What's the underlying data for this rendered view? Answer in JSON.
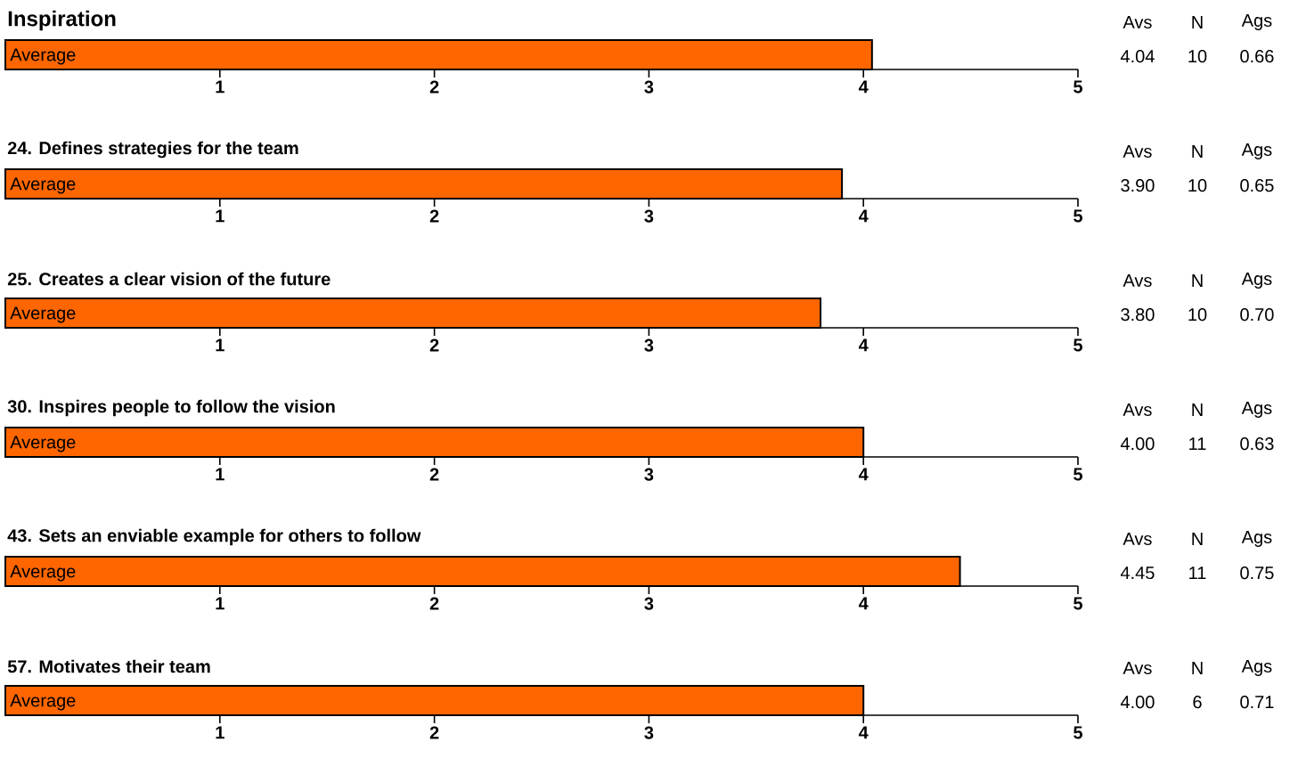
{
  "chart_data": [
    {
      "type": "bar",
      "orientation": "horizontal",
      "title": "Inspiration",
      "categories": [
        "Average"
      ],
      "values": [
        4.04
      ],
      "color": "#ff6600",
      "xlim": [
        0,
        5
      ],
      "xticks": [
        1,
        2,
        3,
        4,
        5
      ],
      "annotations": [
        "Avs",
        "N",
        "Ags",
        "4.04",
        "10",
        "0.66"
      ]
    },
    {
      "type": "bar",
      "orientation": "horizontal",
      "title": "24. Defines strategies for the team",
      "categories": [
        "Average"
      ],
      "values": [
        3.9
      ],
      "color": "#ff6600",
      "xlim": [
        0,
        5
      ],
      "xticks": [
        1,
        2,
        3,
        4,
        5
      ],
      "annotations": [
        "Avs",
        "N",
        "Ags",
        "3.90",
        "10",
        "0.65"
      ]
    },
    {
      "type": "bar",
      "orientation": "horizontal",
      "title": "25. Creates a clear vision of the future",
      "categories": [
        "Average"
      ],
      "values": [
        3.8
      ],
      "color": "#ff6600",
      "xlim": [
        0,
        5
      ],
      "xticks": [
        1,
        2,
        3,
        4,
        5
      ],
      "annotations": [
        "Avs",
        "N",
        "Ags",
        "3.80",
        "10",
        "0.70"
      ]
    },
    {
      "type": "bar",
      "orientation": "horizontal",
      "title": "30. Inspires people to follow the vision",
      "categories": [
        "Average"
      ],
      "values": [
        4.0
      ],
      "color": "#ff6600",
      "xlim": [
        0,
        5
      ],
      "xticks": [
        1,
        2,
        3,
        4,
        5
      ],
      "annotations": [
        "Avs",
        "N",
        "Ags",
        "4.00",
        "11",
        "0.63"
      ]
    },
    {
      "type": "bar",
      "orientation": "horizontal",
      "title": "43. Sets an enviable example for others to follow",
      "categories": [
        "Average"
      ],
      "values": [
        4.45
      ],
      "color": "#ff6600",
      "xlim": [
        0,
        5
      ],
      "xticks": [
        1,
        2,
        3,
        4,
        5
      ],
      "annotations": [
        "Avs",
        "N",
        "Ags",
        "4.45",
        "11",
        "0.75"
      ]
    },
    {
      "type": "bar",
      "orientation": "horizontal",
      "title": "57. Motivates their team",
      "categories": [
        "Average"
      ],
      "values": [
        4.0
      ],
      "color": "#ff6600",
      "xlim": [
        0,
        5
      ],
      "xticks": [
        1,
        2,
        3,
        4,
        5
      ],
      "annotations": [
        "Avs",
        "N",
        "Ags",
        "4.00",
        "6",
        "0.71"
      ]
    }
  ]
}
